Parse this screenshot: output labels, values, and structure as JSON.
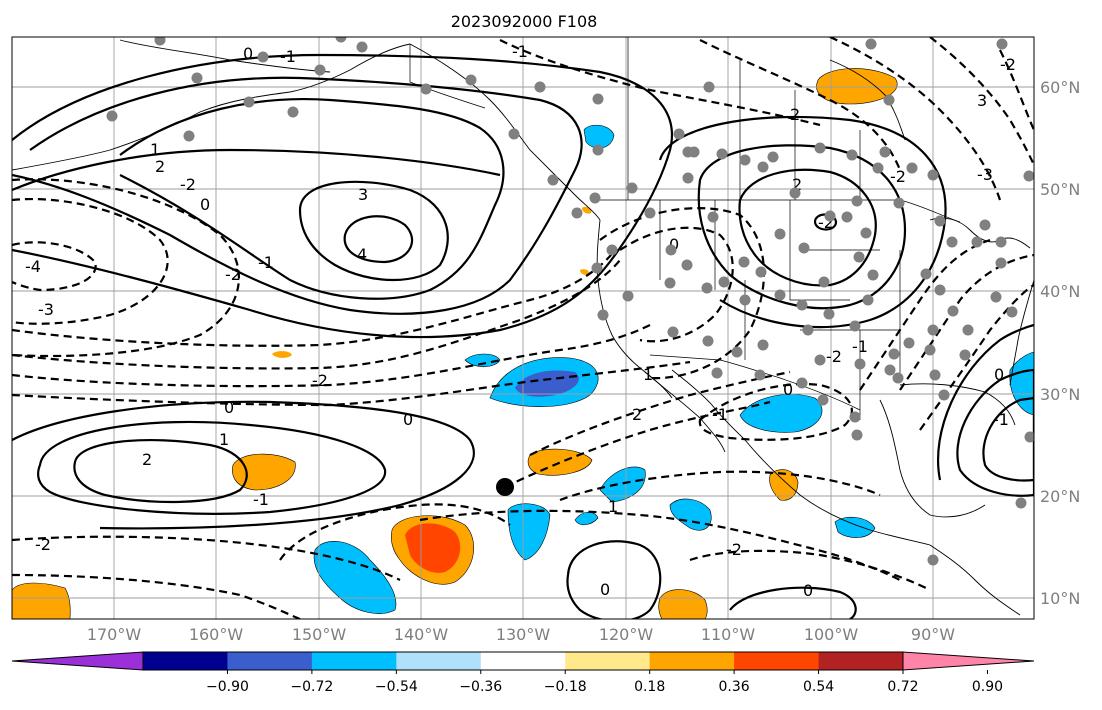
{
  "title": "2023092000 F108",
  "lon_labels": [
    "170°W",
    "160°W",
    "150°W",
    "140°W",
    "130°W",
    "120°W",
    "110°W",
    "100°W",
    "90°W"
  ],
  "lat_labels": [
    "60°N",
    "50°N",
    "40°N",
    "30°N",
    "20°N",
    "10°N"
  ],
  "colorbar": {
    "tick_labels": [
      "−0.90",
      "−0.72",
      "−0.54",
      "−0.36",
      "−0.18",
      "0.18",
      "0.36",
      "0.54",
      "0.72",
      "0.90"
    ],
    "colors": [
      "#9b30d9",
      "#000090",
      "#3a5fcd",
      "#00bfff",
      "#b0e0fa",
      "#ffffff",
      "#ffe98a",
      "#ffa500",
      "#ff4500",
      "#b22222",
      "#ff85a8"
    ]
  },
  "contour_labels": [
    "0",
    "-1",
    "1",
    "2",
    "-2",
    "3",
    "4",
    "-4",
    "-3",
    "-2",
    "-1",
    "0",
    "1",
    "2",
    "-2",
    "0",
    "-1",
    "-2",
    "2",
    "3",
    "2",
    "-2",
    "-1",
    "0",
    "0",
    "1",
    "2",
    "-1",
    "0",
    "-2",
    "-2",
    "0",
    "0",
    "1",
    "0",
    "-1",
    "-2",
    "-3",
    "-2",
    "-1"
  ],
  "colors": {
    "land_line": "#000000",
    "grid": "#9e9e9e",
    "station": "#808080"
  }
}
